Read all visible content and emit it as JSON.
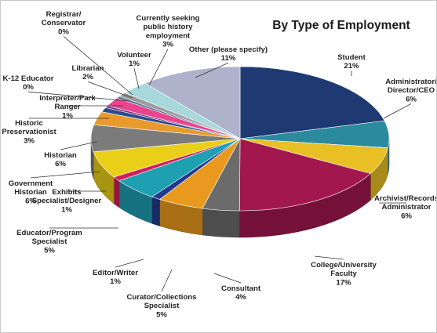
{
  "chart_data": {
    "type": "pie",
    "title": "By Type of Employment",
    "slices": [
      {
        "label": "Student",
        "value": 21,
        "pct": "21%",
        "color": "#1f3a73"
      },
      {
        "label": "Administrator/ Director/CEO",
        "value": 6,
        "pct": "6%",
        "color": "#2b8a9e"
      },
      {
        "label": "Archivist/Records Administrator",
        "value": 6,
        "pct": "6%",
        "color": "#e8bf24"
      },
      {
        "label": "College/University Faculty",
        "value": 17,
        "pct": "17%",
        "color": "#a3174f"
      },
      {
        "label": "Consultant",
        "value": 4,
        "pct": "4%",
        "color": "#6b6b6b"
      },
      {
        "label": "Curator/Collections Specialist",
        "value": 5,
        "pct": "5%",
        "color": "#e99a1e"
      },
      {
        "label": "Editor/Writer",
        "value": 1,
        "pct": "1%",
        "color": "#213a8f"
      },
      {
        "label": "Educator/Program Specialist",
        "value": 5,
        "pct": "5%",
        "color": "#1f9fb2"
      },
      {
        "label": "Exhibits Specialist/Designer",
        "value": 1,
        "pct": "1%",
        "color": "#d01f5a"
      },
      {
        "label": "Government Historian",
        "value": 6,
        "pct": "6%",
        "color": "#e9cf18"
      },
      {
        "label": "Historian",
        "value": 6,
        "pct": "6%",
        "color": "#7b7b7b"
      },
      {
        "label": "Historic Preservationist",
        "value": 3,
        "pct": "3%",
        "color": "#e89a2c"
      },
      {
        "label": "Interpreter/Park Ranger",
        "value": 1,
        "pct": "1%",
        "color": "#2a4c93"
      },
      {
        "label": "K-12 Educator",
        "value": 0,
        "pct": "0%",
        "color": "#7a2a70"
      },
      {
        "label": "Librarian",
        "value": 2,
        "pct": "2%",
        "color": "#e8458f"
      },
      {
        "label": "Registrar/ Conservator",
        "value": 0,
        "pct": "0%",
        "color": "#4a6b91"
      },
      {
        "label": "Volunteer",
        "value": 1,
        "pct": "1%",
        "color": "#9c9c9c"
      },
      {
        "label": "Currently seeking public history employment",
        "value": 3,
        "pct": "3%",
        "color": "#a6d8dc"
      },
      {
        "label": "Other (please specify)",
        "value": 11,
        "pct": "11%",
        "color": "#aeb3cb"
      }
    ]
  }
}
